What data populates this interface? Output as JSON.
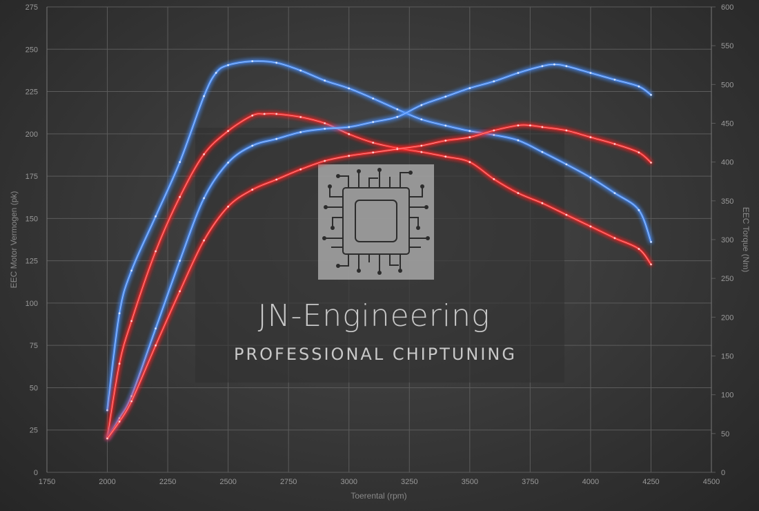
{
  "chart_data": {
    "type": "line",
    "xlabel": "Toerental (rpm)",
    "ylabel_left": "EEC Motor Vermogen (pk)",
    "ylabel_right": "EEC Torque (Nm)",
    "xlim": [
      1750,
      4500
    ],
    "ylim_left": [
      0,
      275
    ],
    "ylim_right": [
      0,
      600
    ],
    "x_ticks": [
      1750,
      2000,
      2250,
      2500,
      2750,
      3000,
      3250,
      3500,
      3750,
      4000,
      4250,
      4500
    ],
    "y_left_ticks": [
      0,
      25,
      50,
      75,
      100,
      125,
      150,
      175,
      200,
      225,
      250,
      275
    ],
    "y_right_ticks": [
      0,
      50,
      100,
      150,
      200,
      250,
      300,
      350,
      400,
      450,
      500,
      550,
      600
    ],
    "grid": true,
    "series": [
      {
        "axis": "right",
        "color": "#4a90ff",
        "x": [
          2000,
          2050,
          2100,
          2200,
          2300,
          2400,
          2450,
          2500,
          2600,
          2700,
          2800,
          2900,
          3000,
          3100,
          3200,
          3300,
          3400,
          3500,
          3600,
          3700,
          3800,
          3900,
          4000,
          4100,
          4200,
          4250
        ],
        "values": [
          80,
          205,
          260,
          330,
          400,
          485,
          515,
          525,
          530,
          528,
          518,
          505,
          495,
          482,
          468,
          455,
          447,
          440,
          435,
          428,
          413,
          397,
          380,
          360,
          338,
          297
        ]
      },
      {
        "axis": "right",
        "color": "#ff2a2a",
        "x": [
          2000,
          2050,
          2100,
          2200,
          2300,
          2400,
          2500,
          2600,
          2650,
          2700,
          2800,
          2900,
          3000,
          3100,
          3200,
          3300,
          3400,
          3500,
          3600,
          3700,
          3800,
          3900,
          4000,
          4100,
          4200,
          4250
        ],
        "values": [
          45,
          140,
          195,
          285,
          355,
          410,
          440,
          460,
          462,
          462,
          458,
          450,
          436,
          425,
          418,
          413,
          407,
          400,
          378,
          360,
          347,
          332,
          317,
          302,
          288,
          268
        ]
      },
      {
        "axis": "left",
        "color": "#4a90ff",
        "x": [
          2000,
          2050,
          2100,
          2200,
          2300,
          2400,
          2500,
          2600,
          2700,
          2800,
          2900,
          3000,
          3100,
          3200,
          3300,
          3400,
          3500,
          3600,
          3700,
          3800,
          3850,
          3900,
          4000,
          4100,
          4200,
          4250
        ],
        "values": [
          20,
          32,
          45,
          85,
          125,
          162,
          183,
          193,
          197,
          201,
          203,
          204,
          207,
          210,
          217,
          222,
          227,
          231,
          236,
          240,
          241,
          240,
          236,
          232,
          228,
          223
        ]
      },
      {
        "axis": "left",
        "color": "#ff2a2a",
        "x": [
          2000,
          2050,
          2100,
          2200,
          2300,
          2400,
          2500,
          2600,
          2700,
          2800,
          2900,
          3000,
          3100,
          3200,
          3300,
          3400,
          3500,
          3600,
          3700,
          3750,
          3800,
          3900,
          4000,
          4100,
          4200,
          4250
        ],
        "values": [
          20,
          30,
          42,
          75,
          107,
          137,
          157,
          167,
          173,
          179,
          184,
          187,
          189,
          191,
          193,
          196,
          198,
          202,
          205,
          205,
          204,
          202,
          198,
          194,
          189,
          183
        ]
      }
    ]
  },
  "watermark": {
    "title": "JN-Engineering",
    "subtitle": "PROFESSIONAL CHIPTUNING",
    "icon": "microchip-icon"
  }
}
